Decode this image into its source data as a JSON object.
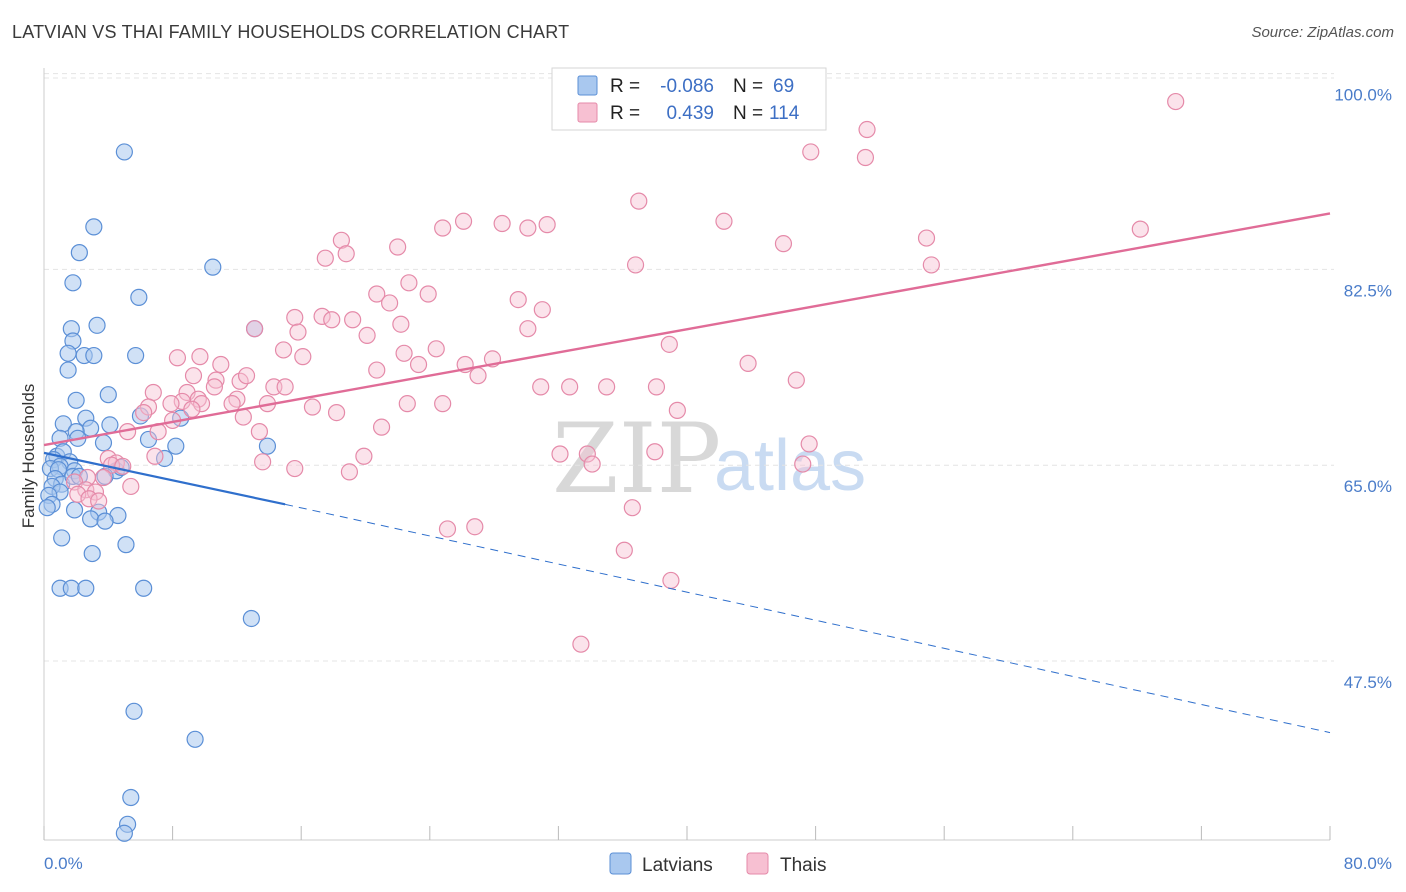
{
  "title": "LATVIAN VS THAI FAMILY HOUSEHOLDS CORRELATION CHART",
  "source": "Source: ZipAtlas.com",
  "colors": {
    "latvian_fill": "#a9c8ef",
    "latvian_stroke": "#5b8fd6",
    "latvian_line": "#2f6fcc",
    "thai_fill": "#f7c0d2",
    "thai_stroke": "#e58aa9",
    "thai_line": "#e06c97"
  },
  "legend": {
    "r_label": "R =",
    "n_label": "N =",
    "rows": [
      {
        "r": "-0.086",
        "n": "69"
      },
      {
        "r": "0.439",
        "n": "114"
      }
    ]
  },
  "watermark": {
    "zip": "ZIP",
    "atlas": "atlas"
  },
  "chart_data": {
    "type": "scatter",
    "title": "LATVIAN VS THAI FAMILY HOUSEHOLDS CORRELATION CHART",
    "xlabel": "",
    "ylabel": "Family Households",
    "xlim": [
      0,
      80
    ],
    "ylim": [
      31.5,
      100.5
    ],
    "x_tick_labels": [
      "0.0%",
      "80.0%"
    ],
    "y_ticks": [
      47.5,
      65.0,
      82.5,
      100.0
    ],
    "y_tick_labels": [
      "47.5%",
      "65.0%",
      "82.5%",
      "100.0%"
    ],
    "grid": true,
    "legend_position": "top-center",
    "series": [
      {
        "name": "Latvians",
        "r": -0.086,
        "n": 69,
        "trend": {
          "x0": 0,
          "y0": 66.1,
          "x1": 15,
          "y1": 61.5,
          "dash_to_x": 80,
          "dash_to_y": 41.1
        },
        "points": [
          [
            5.0,
            93.0
          ],
          [
            3.1,
            86.3
          ],
          [
            2.2,
            84.0
          ],
          [
            10.5,
            82.7
          ],
          [
            1.8,
            81.3
          ],
          [
            5.9,
            80.0
          ],
          [
            1.7,
            77.2
          ],
          [
            3.3,
            77.5
          ],
          [
            13.1,
            77.2
          ],
          [
            1.8,
            76.1
          ],
          [
            1.5,
            75.0
          ],
          [
            2.5,
            74.8
          ],
          [
            5.7,
            74.8
          ],
          [
            3.1,
            74.8
          ],
          [
            1.5,
            73.5
          ],
          [
            4.0,
            71.3
          ],
          [
            2.0,
            70.8
          ],
          [
            1.2,
            68.7
          ],
          [
            2.6,
            69.2
          ],
          [
            6.0,
            69.4
          ],
          [
            8.5,
            69.2
          ],
          [
            4.1,
            68.6
          ],
          [
            2.9,
            68.3
          ],
          [
            2.0,
            68.0
          ],
          [
            2.1,
            67.4
          ],
          [
            1.0,
            67.4
          ],
          [
            6.5,
            67.3
          ],
          [
            3.7,
            67.0
          ],
          [
            8.2,
            66.7
          ],
          [
            13.9,
            66.7
          ],
          [
            0.8,
            65.8
          ],
          [
            1.2,
            66.2
          ],
          [
            7.5,
            65.6
          ],
          [
            0.6,
            65.5
          ],
          [
            1.6,
            65.3
          ],
          [
            1.0,
            64.9
          ],
          [
            0.4,
            64.7
          ],
          [
            0.9,
            64.6
          ],
          [
            4.5,
            64.5
          ],
          [
            1.9,
            64.5
          ],
          [
            4.8,
            64.8
          ],
          [
            3.8,
            64.0
          ],
          [
            0.7,
            63.8
          ],
          [
            1.1,
            63.3
          ],
          [
            1.8,
            64.0
          ],
          [
            2.2,
            64.0
          ],
          [
            0.5,
            63.1
          ],
          [
            1.0,
            62.6
          ],
          [
            0.3,
            62.3
          ],
          [
            0.5,
            61.5
          ],
          [
            0.2,
            61.2
          ],
          [
            1.9,
            61.0
          ],
          [
            3.4,
            60.8
          ],
          [
            4.6,
            60.5
          ],
          [
            2.9,
            60.2
          ],
          [
            3.8,
            60.0
          ],
          [
            1.1,
            58.5
          ],
          [
            5.1,
            57.9
          ],
          [
            3.0,
            57.1
          ],
          [
            1.0,
            54.0
          ],
          [
            1.7,
            54.0
          ],
          [
            2.6,
            54.0
          ],
          [
            6.2,
            54.0
          ],
          [
            12.9,
            51.3
          ],
          [
            5.6,
            43.0
          ],
          [
            9.4,
            40.5
          ],
          [
            5.4,
            35.3
          ],
          [
            5.2,
            32.9
          ],
          [
            5.0,
            32.1
          ]
        ]
      },
      {
        "name": "Thais",
        "r": 0.439,
        "n": 114,
        "trend": {
          "x0": 0,
          "y0": 66.8,
          "x1": 80,
          "y1": 87.5
        },
        "points": [
          [
            70.4,
            97.5
          ],
          [
            51.2,
            95.0
          ],
          [
            51.1,
            92.5
          ],
          [
            47.7,
            93.0
          ],
          [
            37.0,
            88.6
          ],
          [
            26.1,
            86.8
          ],
          [
            28.5,
            86.6
          ],
          [
            30.1,
            86.2
          ],
          [
            31.3,
            86.5
          ],
          [
            24.8,
            86.2
          ],
          [
            42.3,
            86.8
          ],
          [
            54.9,
            85.3
          ],
          [
            68.2,
            86.1
          ],
          [
            46.0,
            84.8
          ],
          [
            18.5,
            85.1
          ],
          [
            22.0,
            84.5
          ],
          [
            17.5,
            83.5
          ],
          [
            18.8,
            83.9
          ],
          [
            36.8,
            82.9
          ],
          [
            55.2,
            82.9
          ],
          [
            22.7,
            81.3
          ],
          [
            20.7,
            80.3
          ],
          [
            23.9,
            80.3
          ],
          [
            29.5,
            79.8
          ],
          [
            21.5,
            79.5
          ],
          [
            15.6,
            78.2
          ],
          [
            17.3,
            78.3
          ],
          [
            19.2,
            78.0
          ],
          [
            31.0,
            78.9
          ],
          [
            17.9,
            78.0
          ],
          [
            13.1,
            77.2
          ],
          [
            22.2,
            77.6
          ],
          [
            30.1,
            77.2
          ],
          [
            20.1,
            76.6
          ],
          [
            15.8,
            76.9
          ],
          [
            38.9,
            75.8
          ],
          [
            24.4,
            75.4
          ],
          [
            14.9,
            75.3
          ],
          [
            16.1,
            74.7
          ],
          [
            9.7,
            74.7
          ],
          [
            8.3,
            74.6
          ],
          [
            26.2,
            74.0
          ],
          [
            27.9,
            74.5
          ],
          [
            23.3,
            74.0
          ],
          [
            20.7,
            73.5
          ],
          [
            27.0,
            73.0
          ],
          [
            43.8,
            74.1
          ],
          [
            46.8,
            72.6
          ],
          [
            10.7,
            72.6
          ],
          [
            12.2,
            72.5
          ],
          [
            10.6,
            72.0
          ],
          [
            14.3,
            72.0
          ],
          [
            30.9,
            72.0
          ],
          [
            32.7,
            72.0
          ],
          [
            35.0,
            72.0
          ],
          [
            38.1,
            72.0
          ],
          [
            8.9,
            71.5
          ],
          [
            6.8,
            71.5
          ],
          [
            12.0,
            70.9
          ],
          [
            9.6,
            70.9
          ],
          [
            8.6,
            70.7
          ],
          [
            9.8,
            70.5
          ],
          [
            7.9,
            70.5
          ],
          [
            11.7,
            70.5
          ],
          [
            6.5,
            70.2
          ],
          [
            13.9,
            70.5
          ],
          [
            16.7,
            70.2
          ],
          [
            22.6,
            70.5
          ],
          [
            24.8,
            70.5
          ],
          [
            9.2,
            70.0
          ],
          [
            6.2,
            69.7
          ],
          [
            12.4,
            69.3
          ],
          [
            18.2,
            69.7
          ],
          [
            39.4,
            69.9
          ],
          [
            8.0,
            69.0
          ],
          [
            5.2,
            68.0
          ],
          [
            7.1,
            68.0
          ],
          [
            13.4,
            68.0
          ],
          [
            21.0,
            68.4
          ],
          [
            33.8,
            66.0
          ],
          [
            32.1,
            66.0
          ],
          [
            38.0,
            66.2
          ],
          [
            47.6,
            66.9
          ],
          [
            47.2,
            65.1
          ],
          [
            13.6,
            65.3
          ],
          [
            6.9,
            65.8
          ],
          [
            4.0,
            65.6
          ],
          [
            4.5,
            65.2
          ],
          [
            15.6,
            64.7
          ],
          [
            19.0,
            64.4
          ],
          [
            19.9,
            65.8
          ],
          [
            34.1,
            65.1
          ],
          [
            4.2,
            65.0
          ],
          [
            4.9,
            64.9
          ],
          [
            2.7,
            63.9
          ],
          [
            3.7,
            63.9
          ],
          [
            1.9,
            63.5
          ],
          [
            5.4,
            63.1
          ],
          [
            2.6,
            62.8
          ],
          [
            3.2,
            62.6
          ],
          [
            2.1,
            62.4
          ],
          [
            2.8,
            62.0
          ],
          [
            3.4,
            61.8
          ],
          [
            36.6,
            61.2
          ],
          [
            25.1,
            59.3
          ],
          [
            26.8,
            59.5
          ],
          [
            36.1,
            57.4
          ],
          [
            39.0,
            54.7
          ],
          [
            33.4,
            49.0
          ],
          [
            11.0,
            74.0
          ],
          [
            12.6,
            73.0
          ],
          [
            15.0,
            72.0
          ],
          [
            22.4,
            75.0
          ],
          [
            9.3,
            73.0
          ]
        ]
      }
    ]
  }
}
